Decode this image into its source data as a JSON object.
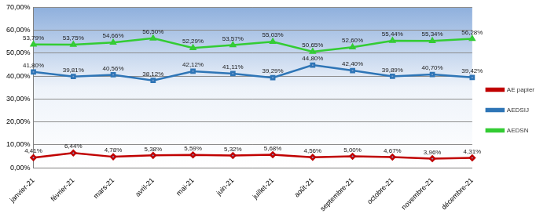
{
  "chart_data": {
    "type": "line",
    "categories": [
      "janvier-21",
      "février-21",
      "mars-21",
      "avril-21",
      "mai-21",
      "juin-21",
      "juillet-21",
      "août-21",
      "septembre-21",
      "octobre-21",
      "novembre-21",
      "décembre-21"
    ],
    "series": [
      {
        "name": "AE papier",
        "color": "#c00000",
        "marker": "diamond",
        "values": [
          4.41,
          6.44,
          4.78,
          5.38,
          5.59,
          5.32,
          5.68,
          4.56,
          5.0,
          4.67,
          3.96,
          4.31
        ],
        "value_labels": [
          "4,41%",
          "6,44%",
          "4,78%",
          "5,38%",
          "5,59%",
          "5,32%",
          "5,68%",
          "4,56%",
          "5,00%",
          "4,67%",
          "3,96%",
          "4,31%"
        ]
      },
      {
        "name": "AEDSIJ",
        "color": "#2e75b6",
        "marker": "square",
        "values": [
          41.8,
          39.81,
          40.56,
          38.12,
          42.12,
          41.11,
          39.29,
          44.8,
          42.4,
          39.89,
          40.7,
          39.42
        ],
        "value_labels": [
          "41,80%",
          "39,81%",
          "40,56%",
          "38,12%",
          "42,12%",
          "41,11%",
          "39,29%",
          "44,80%",
          "42,40%",
          "39,89%",
          "40,70%",
          "39,42%"
        ]
      },
      {
        "name": "AEDSN",
        "color": "#33cc33",
        "marker": "triangle",
        "values": [
          53.79,
          53.75,
          54.66,
          56.5,
          52.29,
          53.57,
          55.03,
          50.65,
          52.6,
          55.44,
          55.34,
          56.28
        ],
        "value_labels": [
          "53,79%",
          "53,75%",
          "54,66%",
          "56,50%",
          "52,29%",
          "53,57%",
          "55,03%",
          "50,65%",
          "52,60%",
          "55,44%",
          "55,34%",
          "56,28%"
        ]
      }
    ],
    "ylim": [
      0,
      70
    ],
    "yticks": [
      {
        "value": 0,
        "label": "0,00%"
      },
      {
        "value": 10,
        "label": "10,00%"
      },
      {
        "value": 20,
        "label": "20,00%"
      },
      {
        "value": 30,
        "label": "30,00%"
      },
      {
        "value": 40,
        "label": "40,00%"
      },
      {
        "value": 50,
        "label": "50,00%"
      },
      {
        "value": 60,
        "label": "60,00%"
      },
      {
        "value": 70,
        "label": "70,00%"
      }
    ],
    "grid": true,
    "legend": "right",
    "data_labels": true
  }
}
